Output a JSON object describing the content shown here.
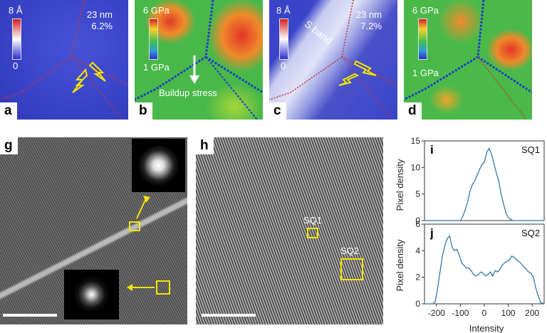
{
  "panels": {
    "a": {
      "label": "a",
      "cbar_max": "8 Å",
      "cbar_min": "0",
      "size": "23 nm",
      "strain": "6.2%"
    },
    "b": {
      "label": "b",
      "cbar_max": "6 GPa",
      "cbar_min": "1 GPa",
      "annotation": "Buildup stress"
    },
    "c": {
      "label": "c",
      "cbar_max": "8 Å",
      "cbar_min": "0",
      "size": "23 nm",
      "strain": "7.2%",
      "band": "S band"
    },
    "d": {
      "label": "d",
      "cbar_max": "6 GPa",
      "cbar_min": "1 GPa"
    },
    "g": {
      "label": "g"
    },
    "h": {
      "label": "h",
      "sq1": "SQ1",
      "sq2": "SQ2"
    }
  },
  "chart_data": [
    {
      "type": "line",
      "panel": "i",
      "legend": "SQ1",
      "ylabel": "Pixel density",
      "ylim": [
        0,
        15
      ],
      "yticks": [
        0,
        5,
        10,
        15
      ],
      "xlim": [
        -250,
        250
      ],
      "x": [
        -250,
        -100,
        -90,
        -80,
        -70,
        -60,
        -50,
        -40,
        -30,
        -20,
        -10,
        0,
        10,
        20,
        30,
        40,
        50,
        60,
        70,
        80,
        90,
        100,
        110,
        120,
        250
      ],
      "y": [
        0,
        0,
        0.8,
        2.0,
        3.5,
        5.5,
        6.8,
        7.5,
        8.5,
        9.6,
        10.5,
        11.0,
        12.8,
        13.6,
        12.5,
        10.8,
        9.0,
        7.5,
        5.0,
        3.2,
        1.5,
        0.6,
        0.2,
        0,
        0
      ]
    },
    {
      "type": "line",
      "panel": "j",
      "legend": "SQ2",
      "xlabel": "Intensity",
      "ylabel": "Pixel density",
      "ylim": [
        0,
        6
      ],
      "yticks": [
        0,
        2,
        4,
        6
      ],
      "xlim": [
        -250,
        250
      ],
      "xticks": [
        -200,
        -100,
        0,
        100,
        200
      ],
      "x": [
        -250,
        -215,
        -205,
        -195,
        -185,
        -175,
        -165,
        -155,
        -145,
        -135,
        -125,
        -115,
        -105,
        -95,
        -85,
        -75,
        -65,
        -55,
        -45,
        -35,
        -25,
        -15,
        -5,
        5,
        15,
        25,
        35,
        45,
        55,
        65,
        75,
        85,
        95,
        105,
        115,
        125,
        135,
        145,
        155,
        165,
        175,
        185,
        195,
        205,
        215,
        225,
        235,
        250
      ],
      "y": [
        0,
        0,
        0.2,
        1.2,
        2.4,
        3.6,
        4.4,
        4.9,
        5.1,
        4.3,
        4.0,
        4.1,
        3.7,
        3.1,
        2.9,
        2.7,
        2.7,
        2.5,
        2.2,
        2.1,
        2.2,
        2.4,
        2.3,
        2.1,
        2.2,
        2.4,
        2.1,
        2.5,
        2.4,
        2.6,
        2.9,
        3.1,
        3.2,
        3.3,
        3.6,
        3.5,
        3.3,
        3.2,
        3.0,
        2.8,
        2.6,
        2.4,
        2.3,
        2.0,
        1.2,
        0.6,
        0.1,
        0
      ]
    }
  ]
}
